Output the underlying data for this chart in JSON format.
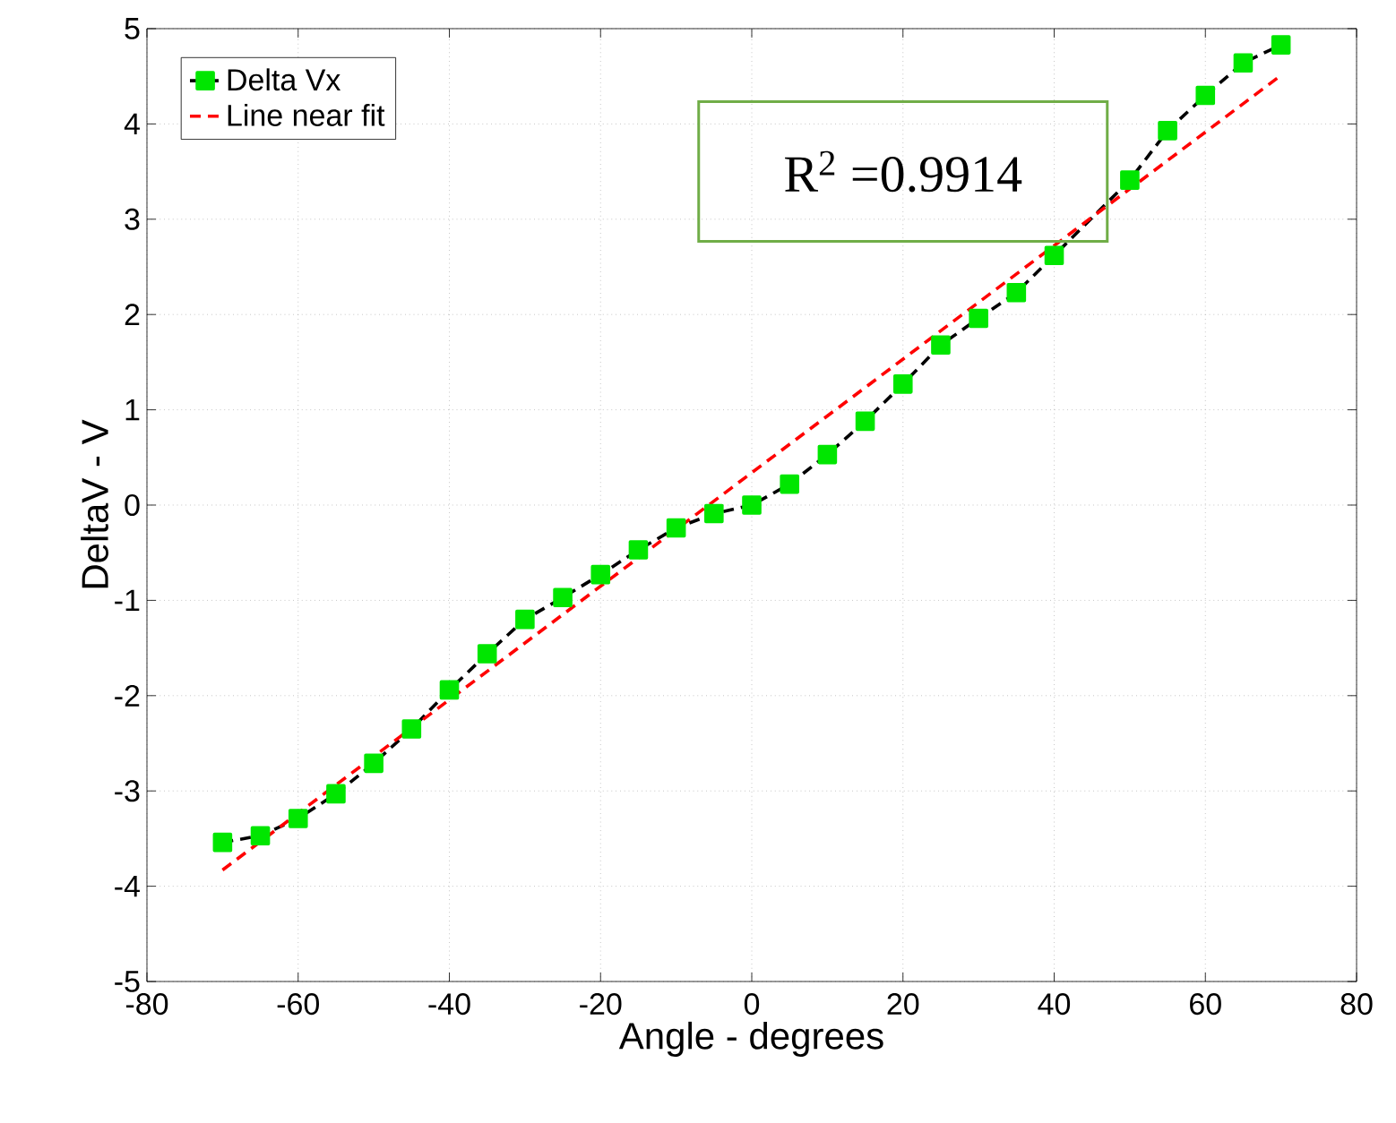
{
  "chart_data": {
    "type": "line",
    "xlabel": "Angle - degrees",
    "ylabel": "DeltaV - V",
    "annotations": [
      "R$^{2}$ =0.9914"
    ],
    "xlim": [
      -80,
      80
    ],
    "ylim": [
      -5,
      5
    ],
    "xticks": [
      -80,
      -60,
      -40,
      -20,
      0,
      20,
      40,
      60,
      80
    ],
    "yticks": [
      -5,
      -4,
      -3,
      -2,
      -1,
      0,
      1,
      2,
      3,
      4,
      5
    ],
    "grid": true,
    "legend": "top left",
    "line_style": "dashed",
    "series": [
      {
        "name": "Delta Vx",
        "color": "#000000",
        "marker": "square",
        "x": [
          -70,
          -65,
          -60,
          -55,
          -50,
          -45,
          -40,
          -35,
          -30,
          -25,
          -20,
          -15,
          -10,
          -5,
          0,
          5,
          10,
          15,
          20,
          25,
          30,
          35,
          40,
          45,
          50,
          55,
          60,
          65,
          70
        ],
        "values": [
          -3.54,
          -3.47,
          -3.29,
          -3.03,
          -2.71,
          -2.35,
          -1.94,
          -1.56,
          -1.2,
          -0.97,
          -0.73,
          -0.47,
          -0.24,
          -0.09,
          0.0,
          0.22,
          0.53,
          0.88,
          1.27,
          1.68,
          1.96,
          2.23,
          2.62,
          null,
          3.41,
          3.93,
          4.3,
          4.64,
          4.83
        ]
      },
      {
        "name": "Line near fit",
        "color": "#ff0000",
        "marker": "none",
        "x": [
          -70,
          70
        ],
        "values": [
          -3.83,
          4.51
        ]
      }
    ]
  }
}
